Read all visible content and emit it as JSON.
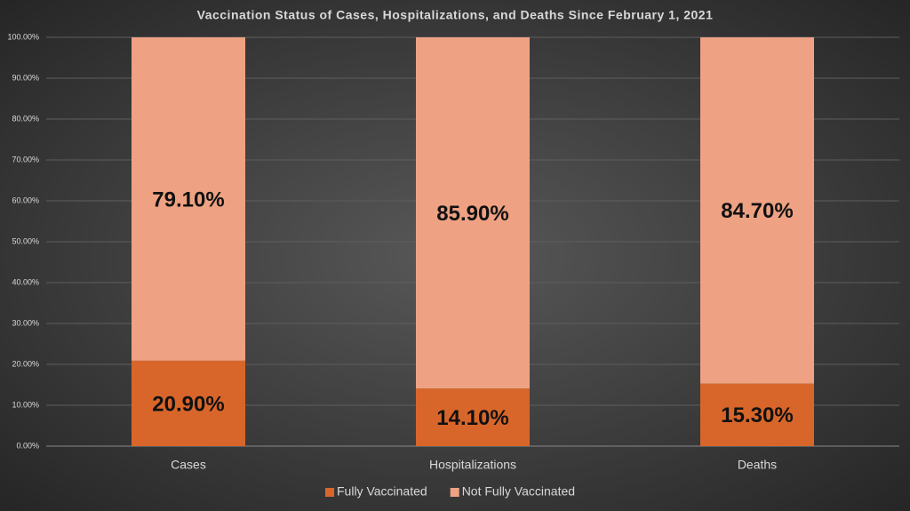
{
  "chart_data": {
    "type": "stacked_bar",
    "title": "Vaccination Status of Cases, Hospitalizations, and Deaths Since February 1, 2021",
    "categories": [
      "Cases",
      "Hospitalizations",
      "Deaths"
    ],
    "series": [
      {
        "name": "Fully Vaccinated",
        "color": "#d8662a",
        "values": [
          20.9,
          14.1,
          15.3
        ],
        "value_labels": [
          "20.90%",
          "14.10%",
          "15.30%"
        ]
      },
      {
        "name": "Not Fully Vaccinated",
        "color": "#eea283",
        "values": [
          79.1,
          85.9,
          84.7
        ],
        "value_labels": [
          "79.10%",
          "85.90%",
          "84.70%"
        ]
      }
    ],
    "ylim": [
      0,
      100
    ],
    "yticks": [
      {
        "value": 0,
        "label": "0.00%"
      },
      {
        "value": 10,
        "label": "10.00%"
      },
      {
        "value": 20,
        "label": "20.00%"
      },
      {
        "value": 30,
        "label": "30.00%"
      },
      {
        "value": 40,
        "label": "40.00%"
      },
      {
        "value": 50,
        "label": "50.00%"
      },
      {
        "value": 60,
        "label": "60.00%"
      },
      {
        "value": 70,
        "label": "70.00%"
      },
      {
        "value": 80,
        "label": "80.00%"
      },
      {
        "value": 90,
        "label": "90.00%"
      },
      {
        "value": 100,
        "label": "100.00%"
      }
    ],
    "grid": true,
    "legend": "bottom"
  }
}
